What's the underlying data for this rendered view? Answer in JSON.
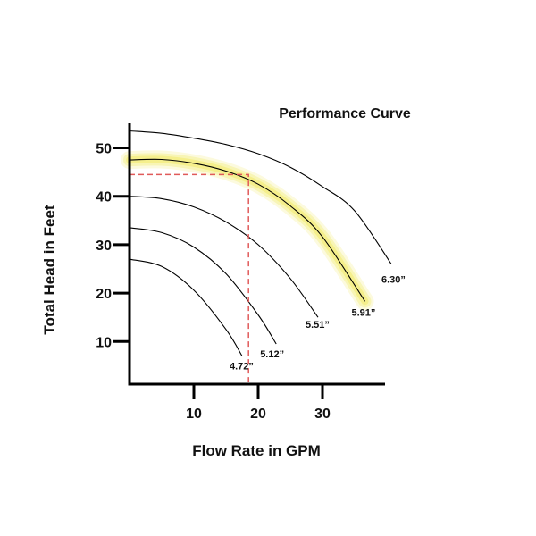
{
  "chart_data": {
    "type": "line",
    "title": "Performance Curve",
    "xlabel": "Flow Rate in GPM",
    "ylabel": "Total Head in Feet",
    "xlim": [
      0,
      40
    ],
    "ylim": [
      3.5,
      57
    ],
    "x_ticks": [
      10,
      20,
      30
    ],
    "y_ticks": [
      10,
      20,
      30,
      40,
      50
    ],
    "grid": false,
    "highlight_series": "5.91”",
    "operating_point": {
      "x": 18.5,
      "y": 44.5
    },
    "series": [
      {
        "name": "4.72”",
        "x": [
          0,
          5,
          10,
          15,
          17.5
        ],
        "y": [
          27,
          25.5,
          20.6,
          12.5,
          7
        ]
      },
      {
        "name": "5.12”",
        "x": [
          0,
          5,
          10,
          15,
          20,
          22.8
        ],
        "y": [
          33.5,
          32.5,
          29.5,
          24,
          15.5,
          9.5
        ]
      },
      {
        "name": "5.51”",
        "x": [
          0,
          5,
          10,
          15,
          20,
          25,
          29.3
        ],
        "y": [
          40,
          39.5,
          37.8,
          34.7,
          30,
          23,
          15
        ]
      },
      {
        "name": "5.91”",
        "x": [
          0,
          5,
          10,
          15,
          20,
          25,
          30,
          36.6
        ],
        "y": [
          47.5,
          47.6,
          46.8,
          45.2,
          42.5,
          38,
          31.6,
          18.3
        ]
      },
      {
        "name": "6.30”",
        "x": [
          0,
          5,
          10,
          15,
          20,
          25,
          30,
          35,
          40.7
        ],
        "y": [
          53.5,
          53,
          52,
          50.7,
          48.8,
          46,
          42,
          37,
          26
        ]
      }
    ],
    "colors": {
      "axis": "#000000",
      "curve": "#000000",
      "highlight": "#f2ea6a",
      "guide": "#e05a5a",
      "text": "#111111"
    }
  }
}
